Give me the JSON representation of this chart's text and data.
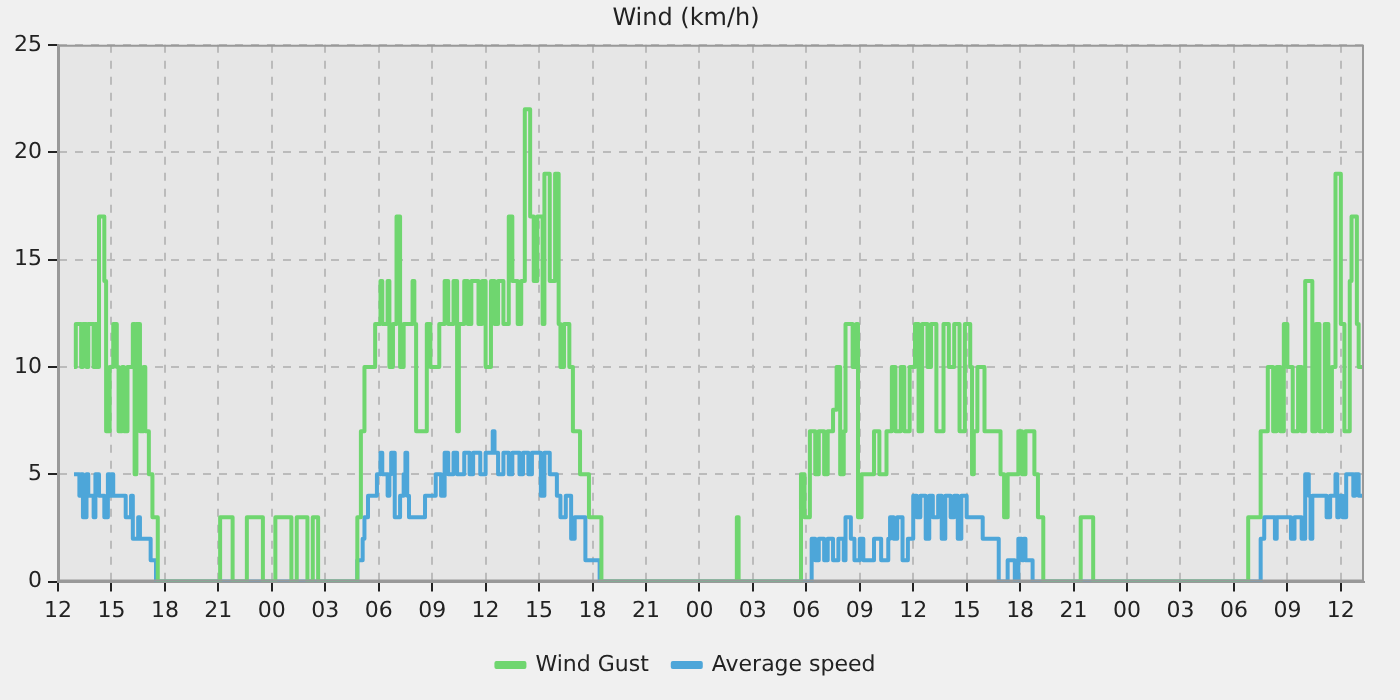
{
  "chart_data": {
    "type": "step",
    "title": "Wind (km/h)",
    "xlim": [
      12,
      85.3
    ],
    "xticks": [
      12,
      15,
      18,
      21,
      {
        "value": 24,
        "label": "00"
      },
      {
        "value": 27,
        "label": "03"
      },
      {
        "value": 30,
        "label": "06"
      },
      {
        "value": 33,
        "label": "09"
      },
      {
        "value": 36,
        "label": "12"
      },
      {
        "value": 39,
        "label": "15"
      },
      {
        "value": 42,
        "label": "18"
      },
      {
        "value": 45,
        "label": "21"
      },
      {
        "value": 48,
        "label": "00"
      },
      {
        "value": 51,
        "label": "03"
      },
      {
        "value": 54,
        "label": "06"
      },
      {
        "value": 57,
        "label": "09"
      },
      {
        "value": 60,
        "label": "12"
      },
      {
        "value": 63,
        "label": "15"
      },
      {
        "value": 66,
        "label": "18"
      },
      {
        "value": 69,
        "label": "21"
      },
      {
        "value": 72,
        "label": "00"
      },
      {
        "value": 75,
        "label": "03"
      },
      {
        "value": 78,
        "label": "06"
      },
      {
        "value": 81,
        "label": "09"
      },
      {
        "value": 84,
        "label": "12"
      }
    ],
    "ylim": [
      0,
      25
    ],
    "yticks": [
      0,
      5,
      10,
      15,
      20,
      25
    ],
    "grid": true,
    "legend": "bottom",
    "marker": "none",
    "series": [
      {
        "name": "Wind Gust",
        "color": "#6fd66f",
        "x": [
          12.9,
          13.0,
          13.3,
          13.4,
          13.6,
          13.7,
          14.0,
          14.1,
          14.2,
          14.3,
          14.6,
          14.7,
          14.9,
          15.1,
          15.3,
          15.4,
          15.6,
          15.7,
          15.9,
          16.2,
          16.3,
          16.4,
          16.6,
          16.8,
          16.9,
          17.1,
          17.3,
          17.6,
          21.1,
          21.8,
          22.6,
          23.5,
          24.2,
          25.1,
          25.4,
          26.0,
          26.3,
          26.6,
          28.8,
          29.0,
          29.2,
          29.8,
          30.1,
          30.2,
          30.5,
          30.6,
          30.8,
          31.0,
          31.2,
          31.4,
          31.9,
          32.0,
          32.1,
          32.7,
          32.9,
          33.4,
          33.7,
          33.9,
          34.2,
          34.4,
          34.5,
          34.8,
          35.0,
          35.2,
          35.6,
          35.8,
          36.0,
          36.3,
          36.5,
          36.7,
          37.0,
          37.3,
          37.5,
          37.8,
          38.0,
          38.2,
          38.5,
          38.7,
          38.9,
          39.2,
          39.3,
          39.6,
          39.9,
          40.1,
          40.2,
          40.4,
          40.7,
          40.9,
          41.3,
          41.8,
          42.5,
          50.1,
          50.2,
          53.7,
          53.9,
          54.2,
          54.5,
          54.7,
          55.0,
          55.2,
          55.5,
          55.7,
          55.9,
          56.1,
          56.2,
          56.6,
          56.8,
          56.9,
          57.1,
          57.8,
          58.1,
          58.5,
          58.8,
          59.0,
          59.3,
          59.5,
          59.8,
          60.1,
          60.3,
          60.5,
          60.8,
          61.0,
          61.3,
          61.7,
          62.0,
          62.3,
          62.6,
          62.9,
          63.2,
          63.3,
          63.4,
          63.6,
          64.0,
          64.9,
          65.1,
          65.3,
          65.9,
          66.1,
          66.3,
          66.8,
          67.0,
          67.3,
          69.4,
          70.1,
          78.8,
          79.5,
          79.9,
          80.2,
          80.4,
          80.6,
          80.8,
          81.0,
          81.3,
          81.6,
          81.8,
          82.0,
          82.4,
          82.6,
          82.8,
          83.1,
          83.3,
          83.5,
          83.7,
          84.0,
          84.2,
          84.5,
          84.6,
          84.9,
          85.0,
          85.2
        ],
        "values": [
          10,
          12,
          10,
          12,
          10,
          12,
          10,
          12,
          10,
          17,
          14,
          7,
          10,
          12,
          10,
          7,
          10,
          7,
          10,
          12,
          5,
          12,
          7,
          10,
          7,
          5,
          3,
          0,
          3,
          0,
          3,
          0,
          3,
          0,
          3,
          0,
          3,
          0,
          3,
          7,
          10,
          12,
          14,
          12,
          14,
          10,
          12,
          17,
          10,
          12,
          14,
          12,
          7,
          12,
          10,
          12,
          14,
          12,
          14,
          7,
          12,
          14,
          12,
          14,
          12,
          14,
          10,
          14,
          12,
          14,
          12,
          17,
          14,
          12,
          14,
          22,
          17,
          14,
          17,
          12,
          19,
          14,
          19,
          12,
          10,
          12,
          10,
          7,
          5,
          3,
          0,
          3,
          0,
          5,
          3,
          7,
          5,
          7,
          5,
          7,
          8,
          10,
          5,
          7,
          12,
          10,
          12,
          3,
          5,
          7,
          5,
          7,
          10,
          7,
          10,
          7,
          10,
          12,
          7,
          12,
          10,
          12,
          7,
          12,
          10,
          12,
          7,
          12,
          10,
          5,
          7,
          10,
          7,
          5,
          3,
          5,
          7,
          5,
          7,
          5,
          3,
          0,
          3,
          0,
          3,
          7,
          10,
          7,
          10,
          7,
          12,
          10,
          7,
          10,
          7,
          14,
          7,
          12,
          7,
          12,
          7,
          10,
          19,
          12,
          7,
          14,
          17,
          12,
          10,
          10
        ]
      },
      {
        "name": "Average speed",
        "color": "#4da6d9",
        "x": [
          12.9,
          13.2,
          13.3,
          13.4,
          13.6,
          13.7,
          14.0,
          14.1,
          14.3,
          14.6,
          14.8,
          14.9,
          15.0,
          15.1,
          15.8,
          16.1,
          16.2,
          16.5,
          16.6,
          17.2,
          17.5,
          28.8,
          29.1,
          29.2,
          29.4,
          29.9,
          30.1,
          30.2,
          30.5,
          30.6,
          30.7,
          30.9,
          31.2,
          31.4,
          31.5,
          31.6,
          31.7,
          32.6,
          33.2,
          33.5,
          33.7,
          33.9,
          34.2,
          34.4,
          34.8,
          35.1,
          35.3,
          35.7,
          36.0,
          36.4,
          36.5,
          36.7,
          37.0,
          37.3,
          37.5,
          37.9,
          38.1,
          38.4,
          38.6,
          39.1,
          39.3,
          39.6,
          40.0,
          40.2,
          40.5,
          40.8,
          41.0,
          41.6,
          42.4,
          54.3,
          54.5,
          54.7,
          55.0,
          55.2,
          55.5,
          55.8,
          56.1,
          56.2,
          56.5,
          56.7,
          57.0,
          57.2,
          57.8,
          58.2,
          58.6,
          58.7,
          58.9,
          59.1,
          59.4,
          59.7,
          60.0,
          60.2,
          60.4,
          60.7,
          60.9,
          61.1,
          61.4,
          61.6,
          61.8,
          62.1,
          62.3,
          62.5,
          62.7,
          63.0,
          63.9,
          64.8,
          65.3,
          65.7,
          65.9,
          66.1,
          66.2,
          66.3,
          66.7,
          79.5,
          79.7,
          80.3,
          80.4,
          80.8,
          81.2,
          81.4,
          81.8,
          82.0,
          82.2,
          82.3,
          82.4,
          82.6,
          83.2,
          83.4,
          83.7,
          83.8,
          83.9,
          84.1,
          84.3,
          84.7,
          84.8,
          85.0,
          85.2
        ],
        "values": [
          5,
          4,
          5,
          3,
          5,
          4,
          3,
          5,
          4,
          3,
          5,
          4,
          5,
          4,
          3,
          4,
          2,
          3,
          2,
          1,
          0,
          1,
          2,
          3,
          4,
          5,
          6,
          5,
          4,
          5,
          6,
          3,
          4,
          5,
          6,
          4,
          3,
          4,
          5,
          4,
          6,
          5,
          6,
          5,
          6,
          5,
          6,
          5,
          6,
          7,
          6,
          5,
          6,
          5,
          6,
          5,
          6,
          5,
          6,
          4,
          6,
          5,
          4,
          3,
          4,
          2,
          3,
          1,
          0,
          2,
          1,
          2,
          1,
          2,
          1,
          2,
          1,
          3,
          2,
          1,
          2,
          1,
          2,
          1,
          2,
          3,
          2,
          3,
          1,
          2,
          4,
          3,
          4,
          2,
          4,
          3,
          4,
          2,
          4,
          3,
          4,
          2,
          4,
          3,
          2,
          0,
          1,
          0,
          2,
          1,
          2,
          1,
          0,
          2,
          3,
          2,
          3,
          3,
          2,
          3,
          2,
          5,
          4,
          2,
          4,
          4,
          3,
          4,
          5,
          3,
          4,
          3,
          5,
          4,
          5,
          4,
          4
        ]
      }
    ]
  }
}
